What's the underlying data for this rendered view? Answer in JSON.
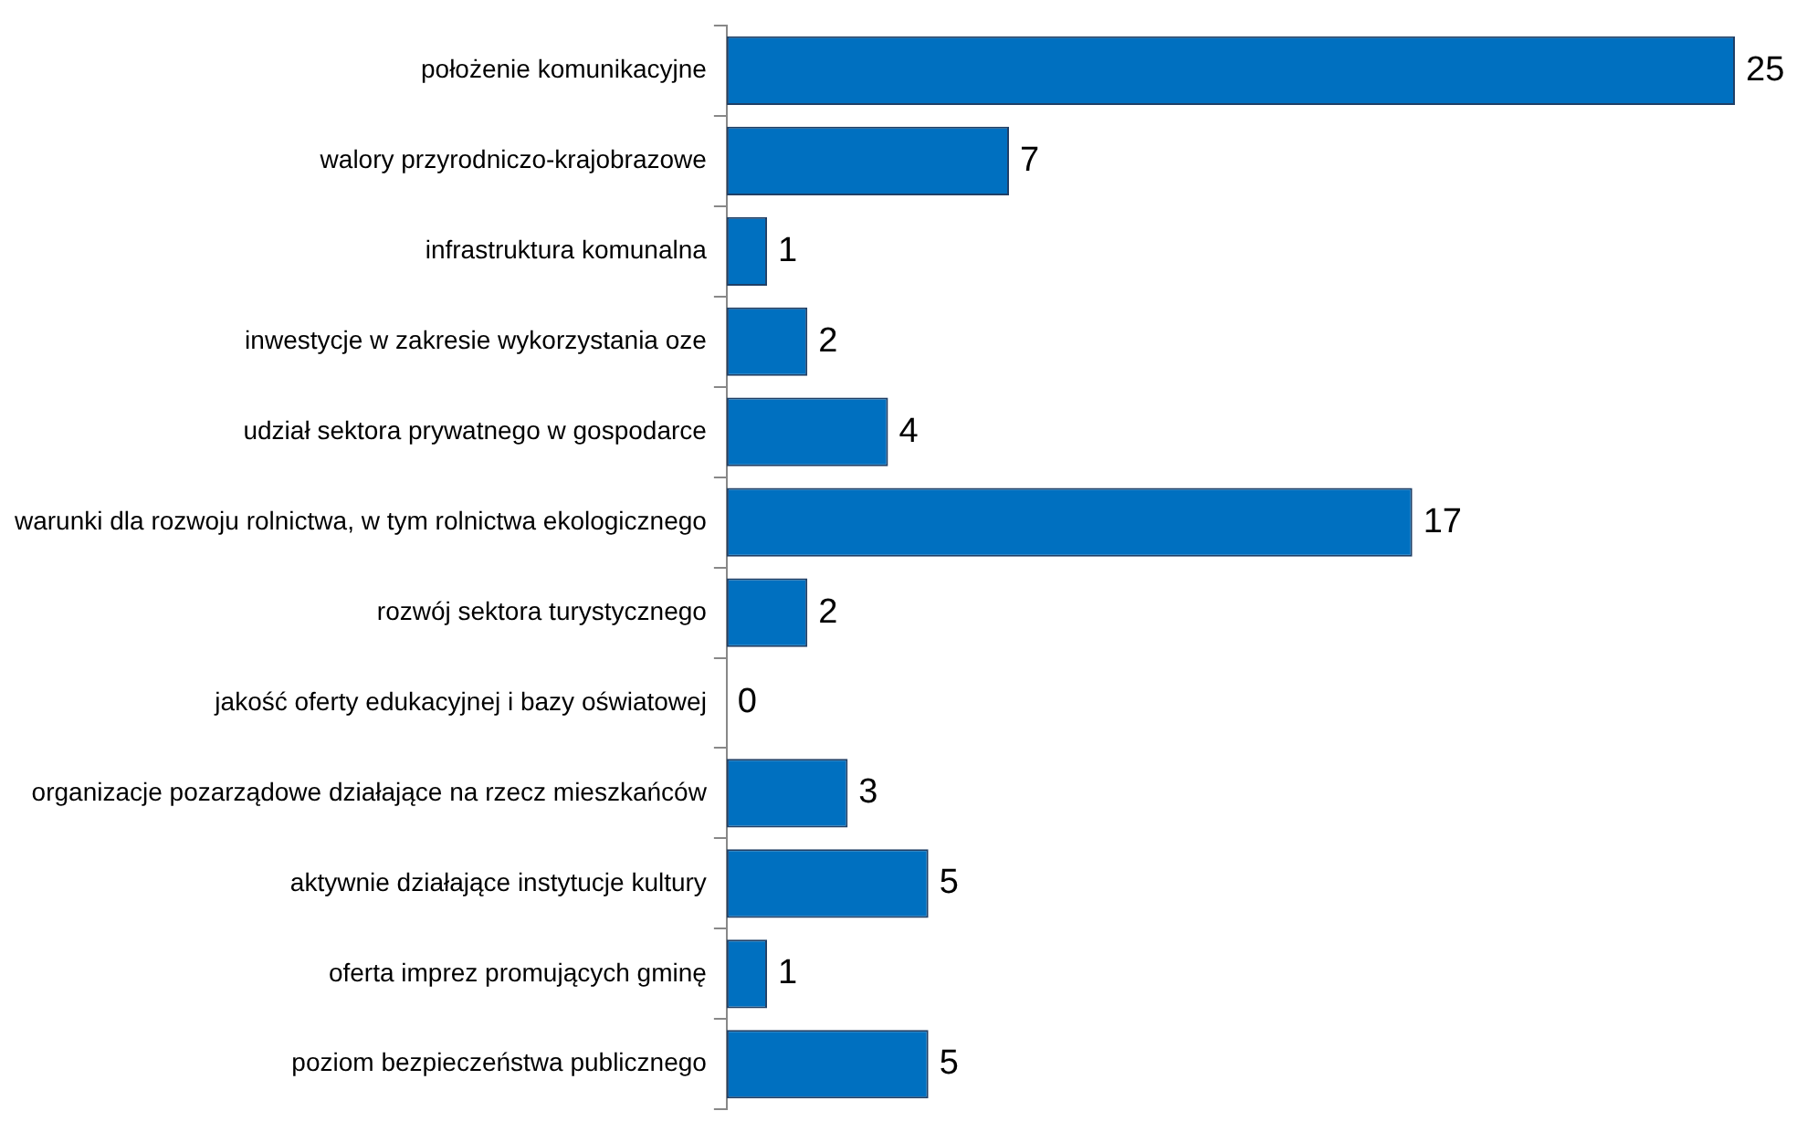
{
  "chart_data": {
    "type": "bar",
    "orientation": "horizontal",
    "categories": [
      "położenie komunikacyjne",
      "walory przyrodniczo-krajobrazowe",
      "infrastruktura komunalna",
      "inwestycje w zakresie wykorzystania oze",
      "udział sektora prywatnego w gospodarce",
      "warunki dla rozwoju rolnictwa, w tym rolnictwa ekologicznego",
      "rozwój sektora turystycznego",
      "jakość oferty edukacyjnej i bazy oświatowej",
      "organizacje pozarządowe działające na rzecz mieszkańców",
      "aktywnie działające instytucje kultury",
      "oferta imprez promujących gminę",
      "poziom bezpieczeństwa publicznego"
    ],
    "values": [
      25,
      7,
      1,
      2,
      4,
      17,
      2,
      0,
      3,
      5,
      1,
      5
    ],
    "color": "#0070c0",
    "xlim": [
      0,
      25
    ],
    "data_labels": true
  }
}
